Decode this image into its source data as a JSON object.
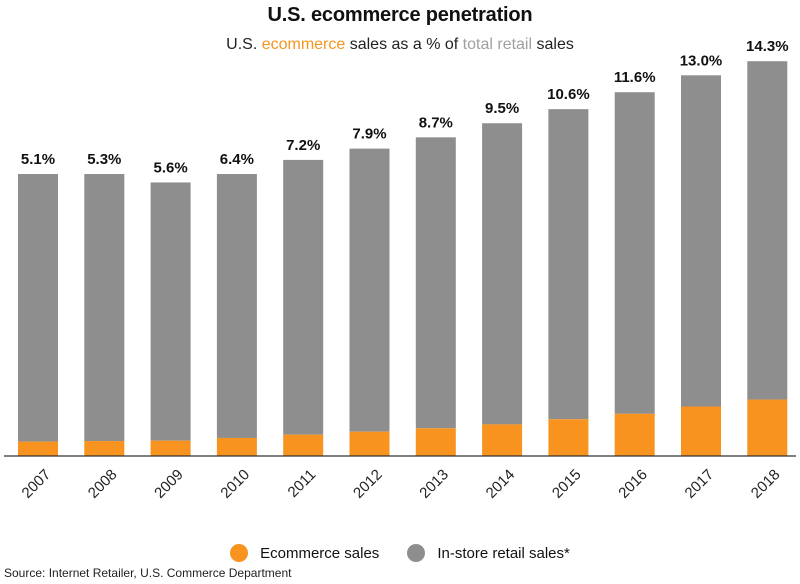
{
  "colors": {
    "ecommerce": "#f7931e",
    "instore": "#8e8e8e",
    "subtitle_grey": "#a0a0a0"
  },
  "subtitle_parts": {
    "p1": "U.S. ",
    "p2": "ecommerce",
    "p3": " sales as a % of ",
    "p4": "total retail",
    "p5": " sales"
  },
  "source": "Source: Internet Retailer, U.S. Commerce Department",
  "chart_data": {
    "type": "bar",
    "stacked": true,
    "title": "U.S. ecommerce penetration",
    "subtitle": "U.S. ecommerce sales as a % of total retail sales",
    "categories": [
      "2007",
      "2008",
      "2009",
      "2010",
      "2011",
      "2012",
      "2013",
      "2014",
      "2015",
      "2016",
      "2017",
      "2018"
    ],
    "labels": [
      "5.1%",
      "5.3%",
      "5.6%",
      "6.4%",
      "7.2%",
      "7.9%",
      "8.7%",
      "9.5%",
      "10.6%",
      "11.6%",
      "13.0%",
      "14.3%"
    ],
    "series": [
      {
        "name": "Ecommerce sales",
        "values": [
          5.1,
          5.3,
          5.6,
          6.4,
          7.2,
          7.9,
          8.7,
          9.5,
          10.6,
          11.6,
          13.0,
          14.3
        ]
      },
      {
        "name": "In-store retail sales*",
        "values": [
          94.9,
          94.7,
          94.4,
          93.6,
          92.8,
          92.1,
          91.3,
          90.5,
          89.4,
          88.4,
          87.0,
          85.7
        ]
      }
    ],
    "relative_total_height": [
      1.0,
      1.0,
      0.97,
      1.0,
      1.05,
      1.09,
      1.13,
      1.18,
      1.23,
      1.29,
      1.35,
      1.4
    ],
    "xlabel": "",
    "ylabel": "",
    "legend": "bottom-center",
    "grid": false
  }
}
